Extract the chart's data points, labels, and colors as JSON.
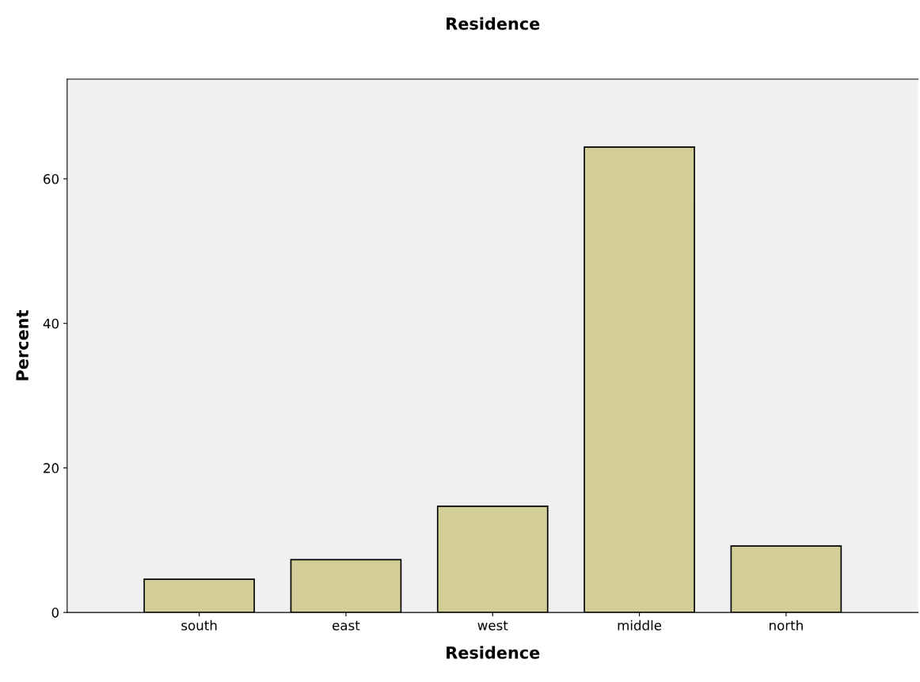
{
  "chart_data": {
    "type": "bar",
    "title": "Residence",
    "xlabel": "Residence",
    "ylabel": "Percent",
    "categories": [
      "south",
      "east",
      "west",
      "middle",
      "north"
    ],
    "values": [
      4.6,
      7.3,
      14.7,
      64.4,
      9.2
    ],
    "color": "#d3ce97",
    "ylim": [
      0,
      73.8
    ],
    "yticks": [
      0,
      20,
      40,
      60
    ],
    "grid": false,
    "legend": false
  }
}
